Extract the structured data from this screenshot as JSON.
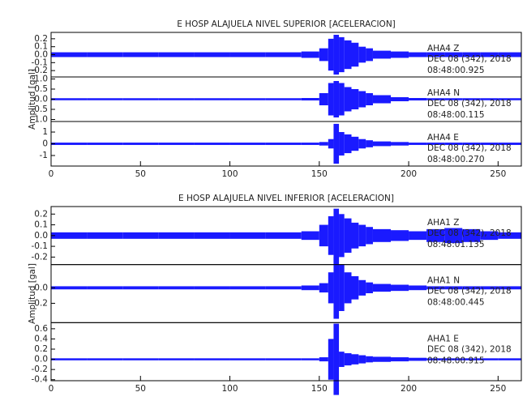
{
  "chart_data": [
    {
      "type": "seismogram",
      "title": "E HOSP ALAJUELA NIVEL SUPERIOR [ACELERACION]",
      "y_label": "Amplitud [gal]",
      "xlim": [
        0,
        263
      ],
      "xticks": [
        0,
        50,
        100,
        150,
        200,
        250
      ],
      "panels": [
        {
          "station": "AHA4  Z",
          "date": "DEC 08 (342), 2018",
          "time": "08:48:00.925",
          "color": "#1a1aff",
          "ylim": [
            -0.28,
            0.28
          ],
          "yticks": [
            0.2,
            0.1,
            {
              "value": 0,
              "label": "0.0"
            },
            -0.1,
            -0.2
          ],
          "bins": [
            0,
            20,
            40,
            60,
            80,
            100,
            120,
            140,
            150,
            155,
            158,
            161,
            164,
            168,
            172,
            176,
            180,
            190,
            200,
            210,
            220,
            230,
            240,
            250,
            263
          ],
          "values": [
            0.03,
            0.03,
            0.03,
            0.03,
            0.03,
            0.03,
            0.03,
            0.04,
            0.08,
            0.2,
            0.25,
            0.22,
            0.18,
            0.15,
            0.1,
            0.08,
            0.05,
            0.04,
            0.03,
            0.03,
            0.03,
            0.03,
            0.03,
            0.03
          ]
        },
        {
          "station": "AHA4  N",
          "date": "DEC 08 (342), 2018",
          "time": "08:48:00.115",
          "color": "#1a1aff",
          "ylim": [
            -1.1,
            1.1
          ],
          "yticks": [
            {
              "value": 1,
              "label": "1.0"
            },
            0.5,
            {
              "value": 0,
              "label": "0.0"
            },
            -0.5,
            {
              "value": -1,
              "label": "-1.0"
            }
          ],
          "bins": [
            0,
            20,
            40,
            60,
            80,
            100,
            120,
            140,
            150,
            155,
            158,
            161,
            164,
            168,
            172,
            176,
            180,
            190,
            200,
            210,
            220,
            230,
            240,
            250,
            263
          ],
          "values": [
            0.05,
            0.05,
            0.05,
            0.05,
            0.05,
            0.05,
            0.05,
            0.06,
            0.3,
            0.8,
            0.9,
            0.8,
            0.6,
            0.5,
            0.4,
            0.3,
            0.2,
            0.1,
            0.06,
            0.05,
            0.05,
            0.05,
            0.05,
            0.05
          ]
        },
        {
          "station": "AHA4  E",
          "date": "DEC 08 (342), 2018",
          "time": "08:48:00.270",
          "color": "#1a1aff",
          "ylim": [
            -1.9,
            1.9
          ],
          "yticks": [
            1,
            0,
            -1
          ],
          "bins": [
            0,
            20,
            40,
            60,
            80,
            100,
            120,
            140,
            150,
            155,
            158,
            161,
            164,
            168,
            172,
            176,
            180,
            190,
            200,
            210,
            220,
            230,
            240,
            250,
            263
          ],
          "values": [
            0.1,
            0.1,
            0.1,
            0.1,
            0.1,
            0.1,
            0.1,
            0.1,
            0.15,
            0.4,
            1.7,
            1.0,
            0.8,
            0.6,
            0.4,
            0.3,
            0.2,
            0.15,
            0.1,
            0.1,
            0.1,
            0.1,
            0.1,
            0.1
          ]
        }
      ]
    },
    {
      "type": "seismogram",
      "title": "E HOSP ALAJUELA NIVEL INFERIOR [ACELERACION]",
      "y_label": "Amplitud [gal]",
      "xlim": [
        0,
        263
      ],
      "xticks": [
        0,
        50,
        100,
        150,
        200,
        250
      ],
      "panels": [
        {
          "station": "AHA1  Z",
          "date": "DEC 08 (342), 2018",
          "time": "08:48:01.135",
          "color": "#1a1aff",
          "ylim": [
            -0.27,
            0.27
          ],
          "yticks": [
            0.2,
            0.1,
            {
              "value": 0,
              "label": "0.0"
            },
            -0.1,
            -0.2
          ],
          "bins": [
            0,
            20,
            40,
            60,
            80,
            100,
            120,
            140,
            150,
            155,
            158,
            161,
            164,
            168,
            172,
            176,
            180,
            190,
            200,
            210,
            220,
            230,
            240,
            250,
            263
          ],
          "values": [
            0.03,
            0.03,
            0.03,
            0.03,
            0.03,
            0.03,
            0.03,
            0.04,
            0.1,
            0.18,
            0.25,
            0.2,
            0.16,
            0.12,
            0.1,
            0.08,
            0.06,
            0.05,
            0.04,
            0.06,
            0.07,
            0.06,
            0.04,
            0.03
          ]
        },
        {
          "station": "AHA1  N",
          "date": "DEC 08 (342), 2018",
          "time": "08:48:00.445",
          "color": "#1a1aff",
          "ylim": [
            -0.45,
            0.3
          ],
          "yticks": [
            {
              "value": 0,
              "label": "0.0"
            },
            -0.2
          ],
          "bins": [
            0,
            20,
            40,
            60,
            80,
            100,
            120,
            140,
            150,
            155,
            158,
            161,
            164,
            168,
            172,
            176,
            180,
            190,
            200,
            210,
            220,
            230,
            240,
            250,
            263
          ],
          "values": [
            0.02,
            0.02,
            0.02,
            0.02,
            0.02,
            0.02,
            0.02,
            0.03,
            0.06,
            0.2,
            0.4,
            0.3,
            0.2,
            0.15,
            0.1,
            0.07,
            0.05,
            0.04,
            0.03,
            0.02,
            0.02,
            0.02,
            0.02,
            0.02
          ]
        },
        {
          "station": "AHA1  E",
          "date": "DEC 08 (342), 2018",
          "time": "08:48:00.915",
          "color": "#1a1aff",
          "ylim": [
            -0.42,
            0.72
          ],
          "yticks": [
            0.6,
            0.4,
            0.2,
            {
              "value": 0,
              "label": "0.0"
            },
            -0.2,
            -0.4
          ],
          "bins": [
            0,
            20,
            40,
            60,
            80,
            100,
            120,
            140,
            150,
            155,
            158,
            161,
            164,
            168,
            172,
            176,
            180,
            190,
            200,
            210,
            220,
            230,
            240,
            250,
            263
          ],
          "values": [
            0.02,
            0.02,
            0.02,
            0.02,
            0.02,
            0.02,
            0.02,
            0.02,
            0.04,
            0.4,
            0.7,
            0.15,
            0.12,
            0.1,
            0.08,
            0.06,
            0.05,
            0.04,
            0.03,
            0.02,
            0.02,
            0.02,
            0.02,
            0.02
          ]
        }
      ]
    }
  ]
}
